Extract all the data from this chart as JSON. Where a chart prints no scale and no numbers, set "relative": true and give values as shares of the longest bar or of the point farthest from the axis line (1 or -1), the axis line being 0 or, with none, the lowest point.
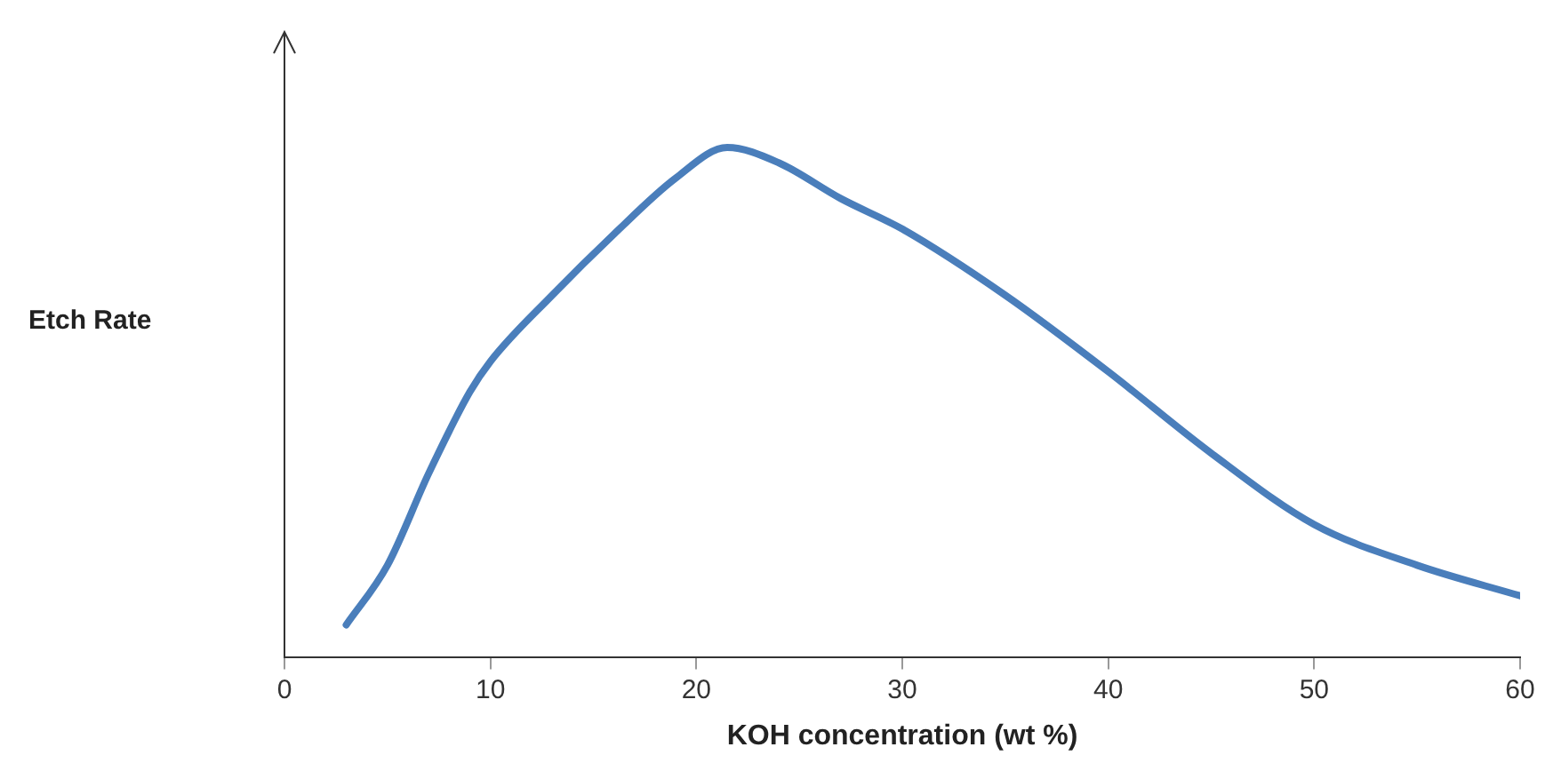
{
  "chart_data": {
    "type": "line",
    "xlabel": "KOH concentration (wt %)",
    "ylabel": "Etch Rate",
    "relative": true,
    "xlim": [
      0,
      60
    ],
    "xticks": [
      0,
      10,
      20,
      30,
      40,
      50,
      60
    ],
    "grid": false,
    "legend": false,
    "marker": "none",
    "line_style": "solid",
    "series": [
      {
        "color": "#4a7ebb",
        "x": [
          3,
          5,
          7,
          9,
          10,
          13,
          16,
          19,
          21.5,
          24,
          27,
          30,
          35,
          40,
          45,
          50,
          55,
          60
        ],
        "values": [
          0.063,
          0.18,
          0.36,
          0.52,
          0.58,
          0.71,
          0.83,
          0.94,
          1.0,
          0.97,
          0.9,
          0.84,
          0.71,
          0.56,
          0.4,
          0.26,
          0.18,
          0.12
        ]
      }
    ]
  }
}
